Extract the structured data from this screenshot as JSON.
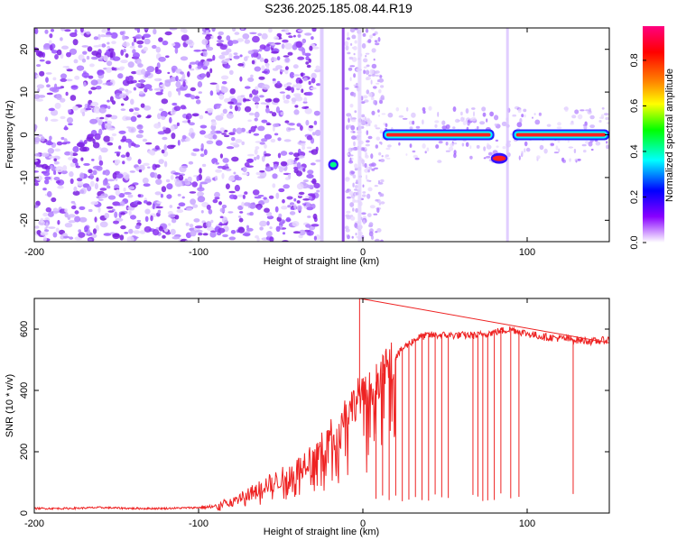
{
  "title": "S236.2025.185.08.44.R19",
  "chart_data": [
    {
      "type": "heatmap",
      "xlabel": "Height of straight line (km)",
      "ylabel": "Frequency (Hz)",
      "xlim": [
        -200,
        150
      ],
      "ylim": [
        -25,
        25
      ],
      "xticks": [
        -200,
        -100,
        0,
        100
      ],
      "yticks": [
        -20,
        -10,
        0,
        10,
        20
      ],
      "colorbar": {
        "label": "Normalized spectral amplitude",
        "range": [
          0,
          0.95
        ],
        "ticks": [
          0.0,
          0.2,
          0.4,
          0.6,
          0.8
        ],
        "colormap": [
          "#ff00ff",
          "#ff0000",
          "#ff8800",
          "#ffff00",
          "#00ff00",
          "#00ffff",
          "#0000ff",
          "#8800ff",
          "#ffffff"
        ]
      },
      "features": [
        {
          "x_start": -200,
          "x_end": -27,
          "freq_hz": [
            -25,
            25
          ],
          "level": 0.05,
          "kind": "noise"
        },
        {
          "x_start": -20,
          "x_end": -16,
          "freq_hz": -7,
          "level": 0.35,
          "kind": "spot"
        },
        {
          "x_start": 12,
          "x_end": 80,
          "freq_hz": 0,
          "level": 0.85,
          "kind": "line"
        },
        {
          "x_start": 79,
          "x_end": 87,
          "freq_hz": -5.5,
          "level": 0.9,
          "kind": "spot"
        },
        {
          "x_start": 91,
          "x_end": 150,
          "freq_hz": 0,
          "level": 0.88,
          "kind": "line"
        }
      ]
    },
    {
      "type": "line",
      "xlabel": "Height of straight line (km)",
      "ylabel": "SNR (10 * v/v)",
      "xlim": [
        -200,
        150
      ],
      "ylim": [
        0,
        700
      ],
      "xticks": [
        -200,
        -100,
        0,
        100
      ],
      "yticks": [
        0,
        200,
        400,
        600
      ],
      "series": [
        {
          "color": "#ee2222",
          "x": [
            -200,
            -180,
            -160,
            -140,
            -120,
            -100,
            -90,
            -80,
            -70,
            -60,
            -50,
            -40,
            -35,
            -30,
            -25,
            -20,
            -15,
            -10,
            -5,
            -2,
            0,
            5,
            10,
            15,
            20,
            25,
            30,
            35,
            40,
            50,
            60,
            70,
            80,
            90,
            100,
            110,
            120,
            130,
            140,
            150
          ],
          "y": [
            15,
            15,
            18,
            15,
            15,
            18,
            20,
            40,
            60,
            90,
            110,
            140,
            170,
            190,
            210,
            250,
            290,
            330,
            360,
            390,
            380,
            410,
            440,
            480,
            510,
            540,
            560,
            575,
            580,
            580,
            580,
            580,
            590,
            600,
            585,
            575,
            570,
            565,
            560,
            565
          ]
        }
      ],
      "dropouts_x": [
        8,
        12,
        16,
        20,
        24,
        28,
        32,
        36,
        40,
        44,
        48,
        52,
        67,
        70,
        73,
        76,
        80,
        84,
        90,
        95,
        128
      ],
      "spike": {
        "x": -2,
        "y": 700
      }
    }
  ]
}
